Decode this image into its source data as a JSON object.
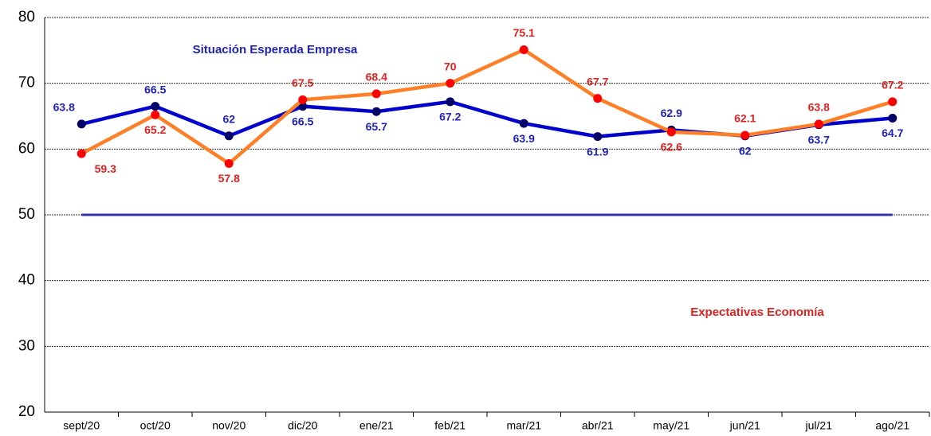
{
  "chart_data": {
    "type": "line",
    "categories": [
      "sept/20",
      "oct/20",
      "nov/20",
      "dic/20",
      "ene/21",
      "feb/21",
      "mar/21",
      "abr/21",
      "may/21",
      "jun/21",
      "jul/21",
      "ago/21"
    ],
    "series": [
      {
        "name": "Situación Esperada Empresa",
        "color": "#0000cc",
        "marker_color": "#000066",
        "label_color": "#2222bb",
        "values": [
          63.8,
          66.5,
          62.0,
          66.5,
          65.7,
          67.2,
          63.9,
          61.9,
          62.9,
          62.0,
          63.7,
          64.7
        ]
      },
      {
        "name": "Expectativas Economía",
        "color": "#ff7f27",
        "marker_color": "#ff0000",
        "label_color": "#dd2222",
        "values": [
          59.3,
          65.2,
          57.8,
          67.5,
          68.4,
          70.0,
          75.1,
          67.7,
          62.6,
          62.1,
          63.8,
          67.2
        ]
      }
    ],
    "reference_line": 50,
    "reference_color": "#3333aa",
    "ylim": [
      20,
      80
    ],
    "yticks": [
      20,
      30,
      40,
      50,
      60,
      70,
      80
    ],
    "grid": true
  }
}
